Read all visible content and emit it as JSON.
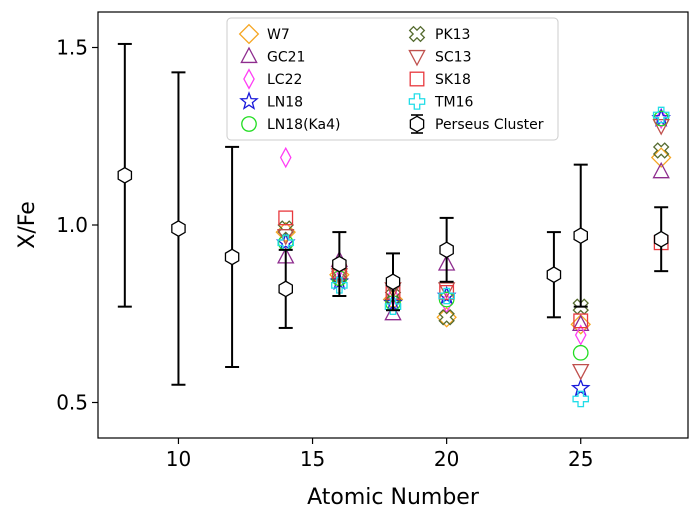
{
  "chart_data": {
    "type": "scatter",
    "xlabel": "Atomic Number",
    "ylabel": "X/Fe",
    "xlim": [
      7,
      29
    ],
    "ylim": [
      0.4,
      1.6
    ],
    "xticks": [
      "10",
      "15",
      "20",
      "25"
    ],
    "yticks": [
      "0.5",
      "1.0",
      "1.5"
    ],
    "xtick_values": [
      10,
      15,
      20,
      25
    ],
    "ytick_values": [
      0.5,
      1.0,
      1.5
    ],
    "grid": false,
    "legend_position": "top-center",
    "series": [
      {
        "name": "W7",
        "marker": "diamond",
        "color": "#f5a623",
        "points": [
          [
            14,
            0.98
          ],
          [
            16,
            0.86
          ],
          [
            18,
            0.79
          ],
          [
            20,
            0.74
          ],
          [
            25,
            0.72
          ],
          [
            28,
            1.19
          ]
        ]
      },
      {
        "name": "GC21",
        "marker": "triangle-up",
        "color": "#8e2c8e",
        "points": [
          [
            14,
            0.91
          ],
          [
            16,
            0.9
          ],
          [
            18,
            0.75
          ],
          [
            20,
            0.89
          ],
          [
            25,
            0.72
          ],
          [
            28,
            1.15
          ]
        ]
      },
      {
        "name": "LC22",
        "marker": "thin-diamond",
        "color": "#ff3df5",
        "points": [
          [
            14,
            1.19
          ],
          [
            16,
            0.88
          ],
          [
            18,
            0.8
          ],
          [
            20,
            0.78
          ],
          [
            25,
            0.69
          ],
          [
            28,
            1.3
          ]
        ]
      },
      {
        "name": "LN18",
        "marker": "star",
        "color": "#1a1adb",
        "points": [
          [
            14,
            0.95
          ],
          [
            16,
            0.84
          ],
          [
            18,
            0.78
          ],
          [
            20,
            0.8
          ],
          [
            25,
            0.54
          ],
          [
            28,
            1.3
          ]
        ]
      },
      {
        "name": "LN18(Ka4)",
        "marker": "circle",
        "color": "#22dd22",
        "points": [
          [
            14,
            0.95
          ],
          [
            16,
            0.85
          ],
          [
            18,
            0.78
          ],
          [
            20,
            0.79
          ],
          [
            25,
            0.64
          ],
          [
            28,
            1.3
          ]
        ]
      },
      {
        "name": "PK13",
        "marker": "x-filled",
        "color": "#556b2f",
        "points": [
          [
            14,
            0.99
          ],
          [
            16,
            0.86
          ],
          [
            18,
            0.8
          ],
          [
            20,
            0.74
          ],
          [
            25,
            0.77
          ],
          [
            28,
            1.21
          ]
        ]
      },
      {
        "name": "SC13",
        "marker": "triangle-down",
        "color": "#c0504d",
        "points": [
          [
            14,
            0.97
          ],
          [
            16,
            0.86
          ],
          [
            18,
            0.82
          ],
          [
            20,
            0.82
          ],
          [
            25,
            0.59
          ],
          [
            28,
            1.28
          ]
        ]
      },
      {
        "name": "SK18",
        "marker": "square",
        "color": "#e8383d",
        "points": [
          [
            14,
            1.02
          ],
          [
            16,
            0.87
          ],
          [
            18,
            0.81
          ],
          [
            20,
            0.81
          ],
          [
            25,
            0.73
          ],
          [
            28,
            0.95
          ]
        ]
      },
      {
        "name": "TM16",
        "marker": "plus-filled",
        "color": "#22dde8",
        "points": [
          [
            14,
            0.95
          ],
          [
            16,
            0.83
          ],
          [
            18,
            0.77
          ],
          [
            20,
            0.8
          ],
          [
            25,
            0.51
          ],
          [
            28,
            1.31
          ]
        ]
      },
      {
        "name": "Perseus Cluster",
        "marker": "hexagon",
        "color": "#000000",
        "errorbars": true,
        "points": [
          [
            8,
            1.14
          ],
          [
            10,
            0.99
          ],
          [
            12,
            0.91
          ],
          [
            14,
            0.82
          ],
          [
            16,
            0.89
          ],
          [
            18,
            0.84
          ],
          [
            20,
            0.93
          ],
          [
            24,
            0.86
          ],
          [
            25,
            0.97
          ],
          [
            28,
            0.96
          ]
        ],
        "errors": [
          [
            0.37,
            0.37
          ],
          [
            0.44,
            0.44
          ],
          [
            0.31,
            0.31
          ],
          [
            0.11,
            0.11
          ],
          [
            0.09,
            0.09
          ],
          [
            0.08,
            0.08
          ],
          [
            0.09,
            0.09
          ],
          [
            0.12,
            0.12
          ],
          [
            0.2,
            0.2
          ],
          [
            0.09,
            0.09
          ]
        ]
      }
    ]
  }
}
